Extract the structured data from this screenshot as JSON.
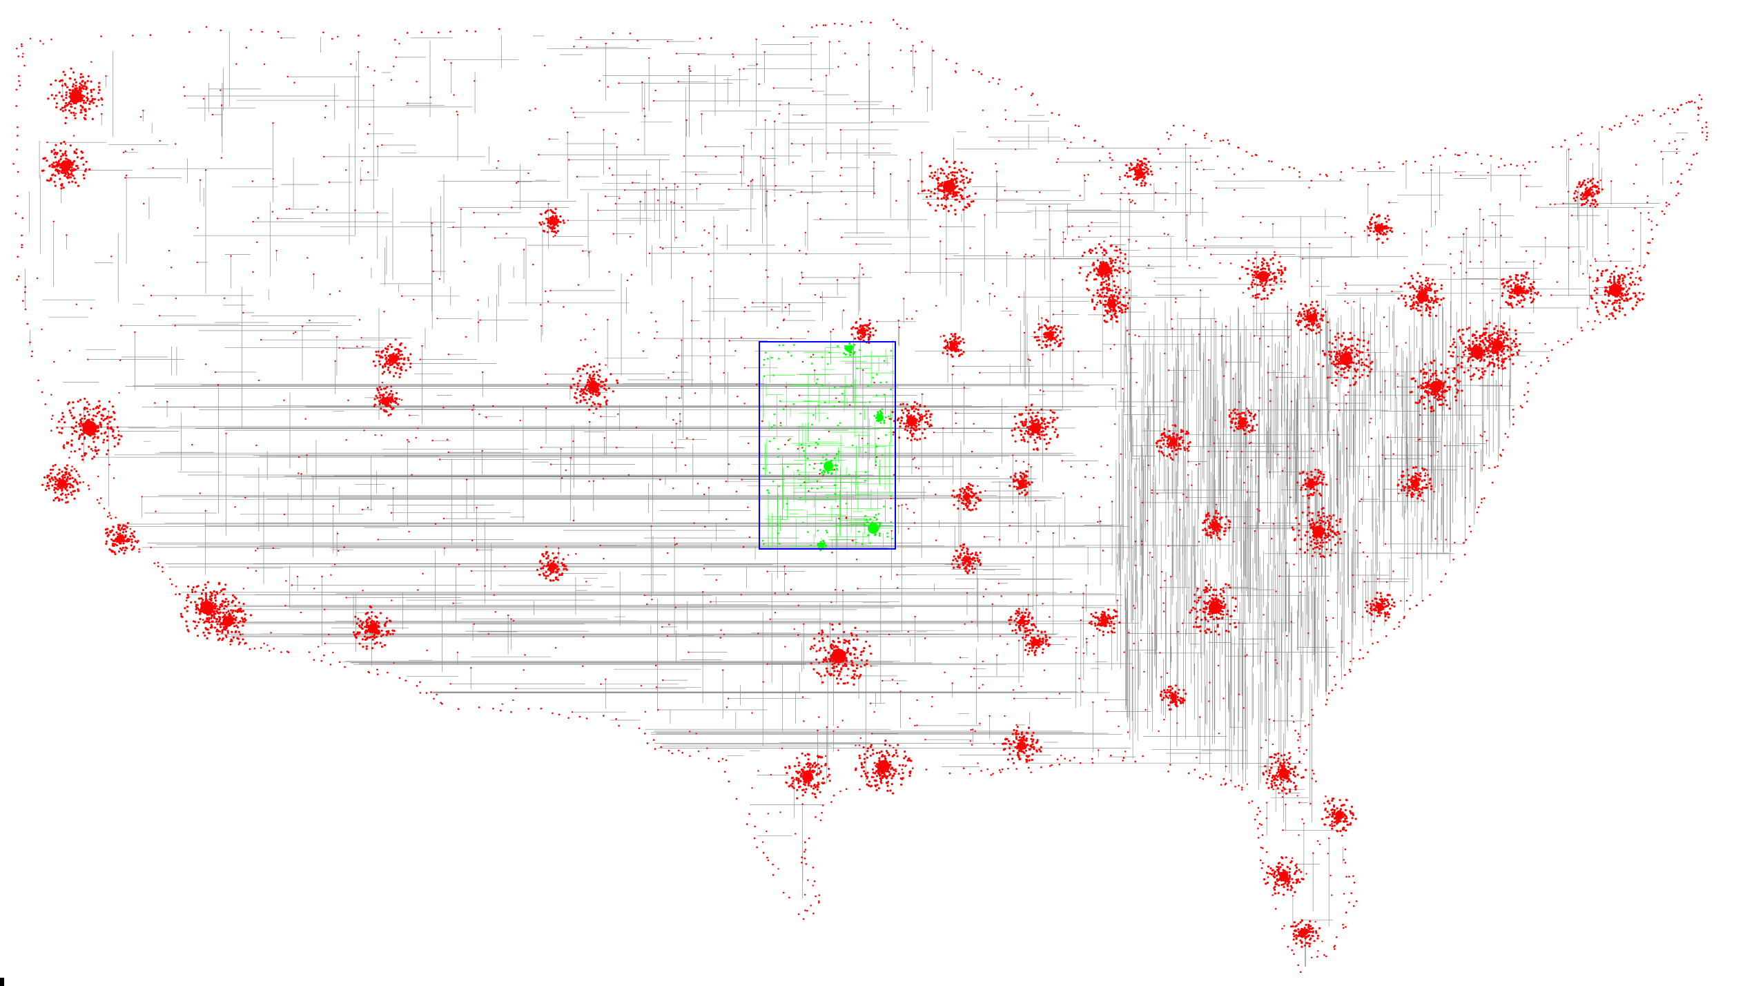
{
  "view": {
    "type": "graph-map",
    "region": "contiguous-united-states",
    "background_color": "#ffffff",
    "edge_color": "#000000",
    "node_color": "#ff0000",
    "highlight_node_color": "#00ff00",
    "highlight_box_color": "#0000ff",
    "has_highlighted_region": true
  }
}
